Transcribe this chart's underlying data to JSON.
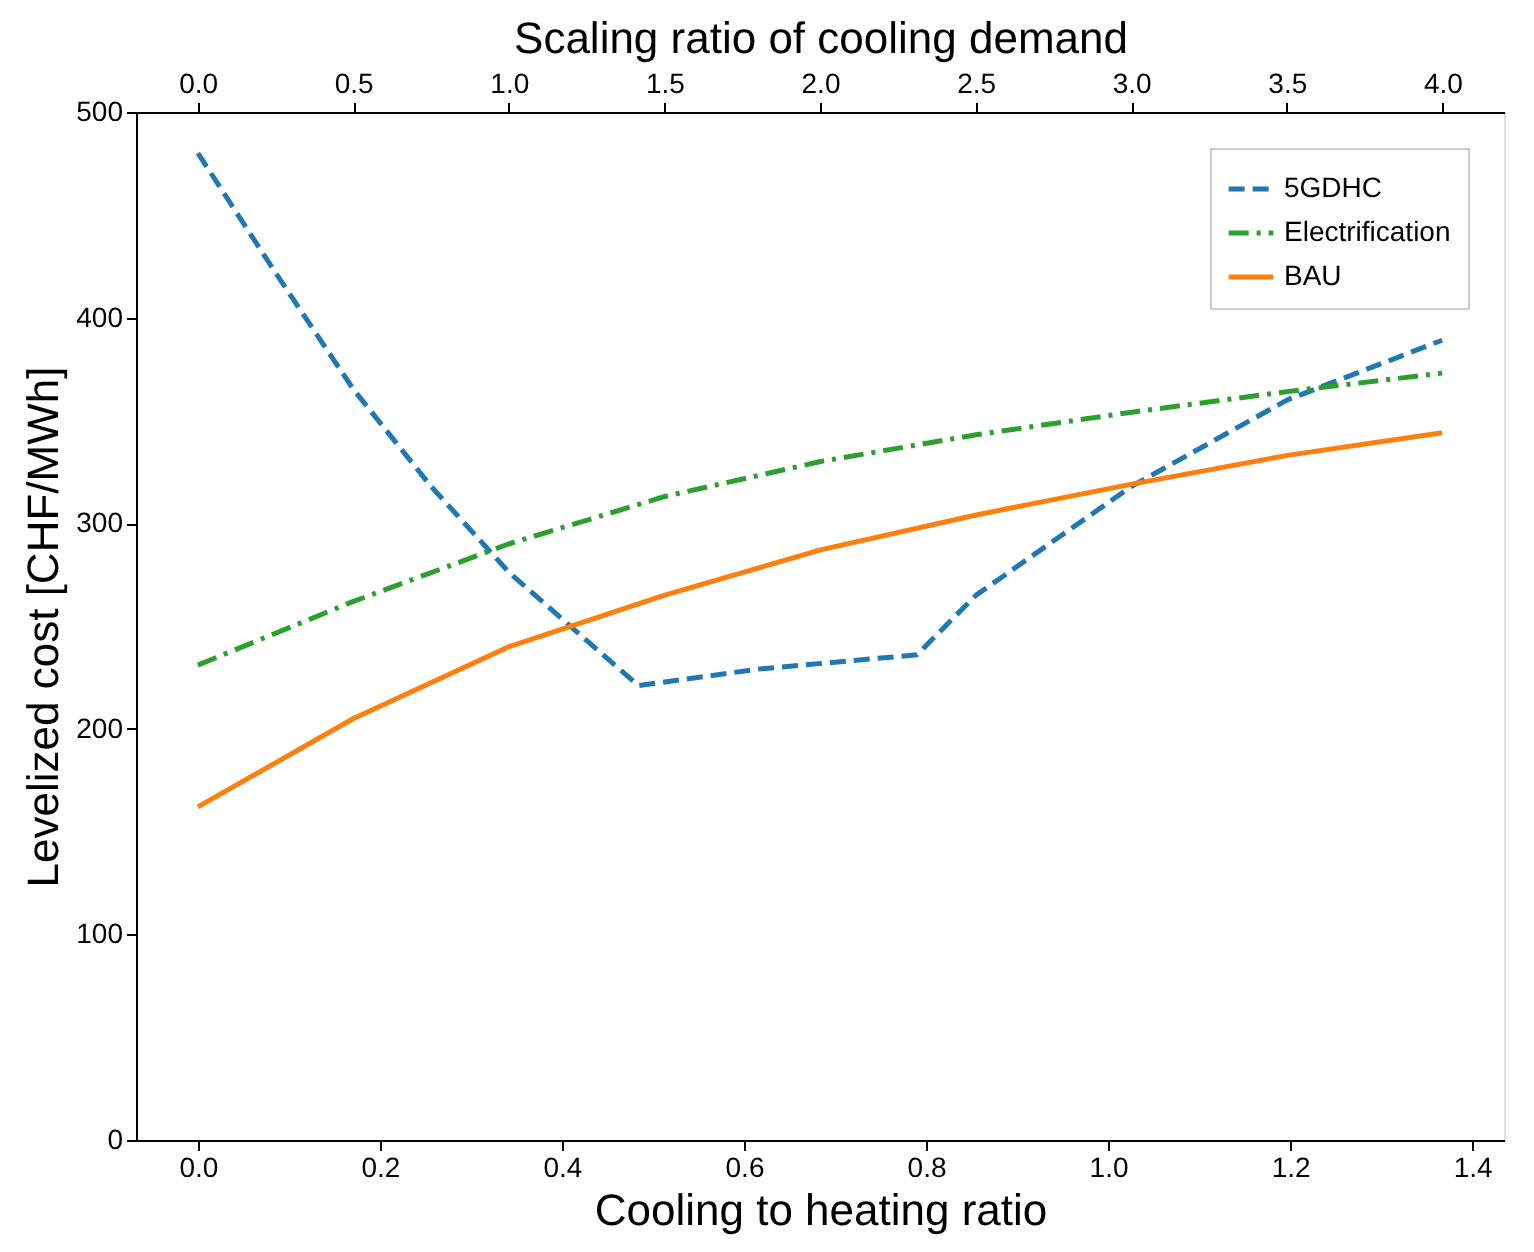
{
  "chart_data": {
    "type": "line",
    "xlabel": "Cooling to heating ratio",
    "ylabel": "Levelized cost [CHF/MWh]",
    "x2label": "Scaling ratio of cooling demand",
    "xlim": [
      -0.068,
      1.435
    ],
    "xticks": [
      {
        "value": 0,
        "label": "0.0"
      },
      {
        "value": 0.2,
        "label": "0.2"
      },
      {
        "value": 0.4,
        "label": "0.4"
      },
      {
        "value": 0.6,
        "label": "0.6"
      },
      {
        "value": 0.8,
        "label": "0.8"
      },
      {
        "value": 1.0,
        "label": "1.0"
      },
      {
        "value": 1.2,
        "label": "1.2"
      },
      {
        "value": 1.4,
        "label": "1.4"
      }
    ],
    "x2lim": [
      -0.198,
      4.198
    ],
    "x2ticks": [
      {
        "value": 0,
        "label": "0.0"
      },
      {
        "value": 0.5,
        "label": "0.5"
      },
      {
        "value": 1.0,
        "label": "1.0"
      },
      {
        "value": 1.5,
        "label": "1.5"
      },
      {
        "value": 2.0,
        "label": "2.0"
      },
      {
        "value": 2.5,
        "label": "2.5"
      },
      {
        "value": 3.0,
        "label": "3.0"
      },
      {
        "value": 3.5,
        "label": "3.5"
      },
      {
        "value": 4.0,
        "label": "4.0"
      }
    ],
    "ylim": [
      0,
      500
    ],
    "yticks": [
      0,
      100,
      200,
      300,
      400,
      500
    ],
    "grid": false,
    "legend": "top right",
    "series": [
      {
        "name": "5GDHC",
        "color": "#1f77b4",
        "line_style": "dashed",
        "x": [
          0,
          0.085,
          0.171,
          0.256,
          0.342,
          0.427,
          0.484,
          0.615,
          0.79,
          0.855,
          1.026,
          1.197,
          1.367
        ],
        "values": [
          480,
          422,
          365,
          318,
          276,
          243,
          221,
          229,
          236,
          265,
          318,
          360,
          389
        ]
      },
      {
        "name": "Electrification",
        "color": "#2ca02c",
        "line_style": "dashdot",
        "x": [
          0,
          0.171,
          0.342,
          0.513,
          0.684,
          0.855,
          1.026,
          1.197,
          1.367
        ],
        "values": [
          231,
          262,
          290,
          313,
          330,
          343,
          354,
          364,
          373
        ]
      },
      {
        "name": "BAU",
        "color": "#ff7f0e",
        "line_style": "solid",
        "x": [
          0,
          0.171,
          0.342,
          0.513,
          0.684,
          0.855,
          1.026,
          1.197,
          1.367
        ],
        "values": [
          162,
          205,
          240,
          265,
          287,
          304,
          319,
          333,
          344
        ]
      }
    ]
  }
}
